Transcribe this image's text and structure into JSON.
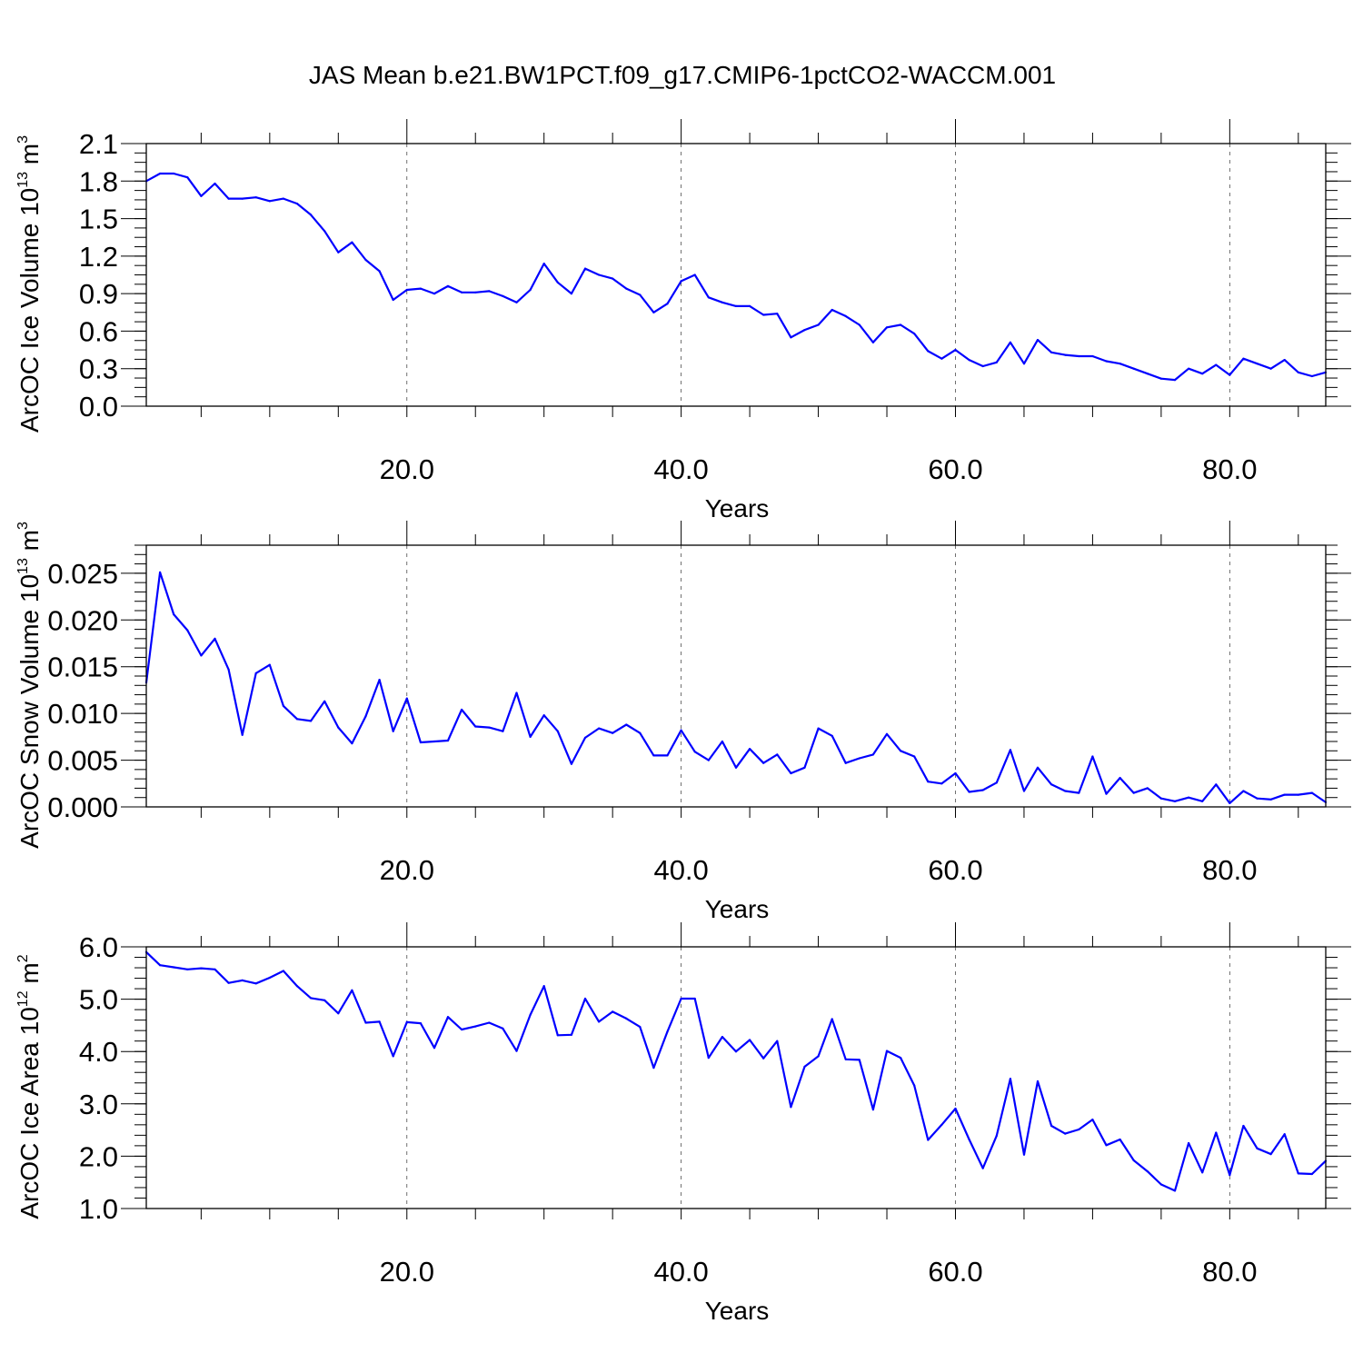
{
  "figure": {
    "title": "JAS Mean b.e21.BW1PCT.f09_g17.CMIP6-1pctCO2-WACCM.001"
  },
  "colors": {
    "series": "#0000ff",
    "axis": "#000000",
    "grid": "#000000"
  },
  "chart_data": [
    {
      "type": "line",
      "xlabel": "Years",
      "ylabel": "ArcOC Ice Volume 10",
      "ylabel_exp": "13",
      "ylabel_unit": "m",
      "ylabel_unit_exp": "3",
      "xlim": [
        1,
        87
      ],
      "ylim": [
        0.0,
        2.1
      ],
      "xticks": [
        20,
        40,
        60,
        80
      ],
      "xtick_labels": [
        "20.0",
        "40.0",
        "60.0",
        "80.0"
      ],
      "yticks": [
        0.0,
        0.3,
        0.6,
        0.9,
        1.2,
        1.5,
        1.8,
        2.1
      ],
      "ytick_labels": [
        "0.0",
        "0.3",
        "0.6",
        "0.9",
        "1.2",
        "1.5",
        "1.8",
        "2.1"
      ],
      "grid": "vertical dashed at major x ticks",
      "series": [
        {
          "x_start": 1,
          "values": [
            1.8,
            1.86,
            1.86,
            1.83,
            1.68,
            1.78,
            1.66,
            1.66,
            1.67,
            1.64,
            1.66,
            1.62,
            1.53,
            1.4,
            1.23,
            1.31,
            1.17,
            1.08,
            0.85,
            0.93,
            0.94,
            0.9,
            0.96,
            0.91,
            0.91,
            0.92,
            0.88,
            0.83,
            0.93,
            1.14,
            0.99,
            0.9,
            1.1,
            1.05,
            1.02,
            0.94,
            0.89,
            0.75,
            0.82,
            1.0,
            1.05,
            0.87,
            0.83,
            0.8,
            0.8,
            0.73,
            0.74,
            0.55,
            0.61,
            0.65,
            0.77,
            0.72,
            0.65,
            0.51,
            0.63,
            0.65,
            0.58,
            0.44,
            0.38,
            0.45,
            0.37,
            0.32,
            0.35,
            0.51,
            0.34,
            0.53,
            0.43,
            0.41,
            0.4,
            0.4,
            0.36,
            0.34,
            0.3,
            0.26,
            0.22,
            0.21,
            0.3,
            0.26,
            0.33,
            0.25,
            0.38,
            0.34,
            0.3,
            0.37,
            0.27,
            0.24,
            0.27
          ]
        }
      ]
    },
    {
      "type": "line",
      "xlabel": "Years",
      "ylabel": "ArcOC Snow Volume 10",
      "ylabel_exp": "13",
      "ylabel_unit": "m",
      "ylabel_unit_exp": "3",
      "xlim": [
        1,
        87
      ],
      "ylim": [
        0.0,
        0.028
      ],
      "xticks": [
        20,
        40,
        60,
        80
      ],
      "xtick_labels": [
        "20.0",
        "40.0",
        "60.0",
        "80.0"
      ],
      "yticks": [
        0.0,
        0.005,
        0.01,
        0.015,
        0.02,
        0.025
      ],
      "ytick_labels": [
        "0.000",
        "0.005",
        "0.010",
        "0.015",
        "0.020",
        "0.025"
      ],
      "grid": "vertical dashed at major x ticks",
      "series": [
        {
          "x_start": 1,
          "values": [
            0.0133,
            0.0251,
            0.0206,
            0.0189,
            0.0162,
            0.018,
            0.0147,
            0.0077,
            0.0143,
            0.0152,
            0.0108,
            0.0094,
            0.0092,
            0.0113,
            0.0085,
            0.0068,
            0.0097,
            0.0136,
            0.0081,
            0.0116,
            0.0069,
            0.007,
            0.0071,
            0.0104,
            0.0086,
            0.0085,
            0.0081,
            0.0122,
            0.0075,
            0.0098,
            0.0081,
            0.0046,
            0.0074,
            0.0084,
            0.0079,
            0.0088,
            0.0079,
            0.0055,
            0.0055,
            0.0082,
            0.0059,
            0.005,
            0.007,
            0.0042,
            0.0062,
            0.0047,
            0.0056,
            0.0036,
            0.0042,
            0.0084,
            0.0076,
            0.0047,
            0.0052,
            0.0056,
            0.0078,
            0.006,
            0.0054,
            0.0027,
            0.0025,
            0.0036,
            0.0016,
            0.0018,
            0.0026,
            0.0061,
            0.0017,
            0.0042,
            0.0024,
            0.0017,
            0.0015,
            0.0054,
            0.0014,
            0.0031,
            0.0015,
            0.002,
            0.0009,
            0.0006,
            0.001,
            0.0006,
            0.0024,
            0.0004,
            0.0017,
            0.0009,
            0.0008,
            0.0013,
            0.0013,
            0.0015,
            0.0005
          ]
        }
      ]
    },
    {
      "type": "line",
      "xlabel": "Years",
      "ylabel": "ArcOC Ice Area 10",
      "ylabel_exp": "12",
      "ylabel_unit": "m",
      "ylabel_unit_exp": "2",
      "xlim": [
        1,
        87
      ],
      "ylim": [
        1.0,
        6.0
      ],
      "xticks": [
        20,
        40,
        60,
        80
      ],
      "xtick_labels": [
        "20.0",
        "40.0",
        "60.0",
        "80.0"
      ],
      "yticks": [
        1.0,
        2.0,
        3.0,
        4.0,
        5.0,
        6.0
      ],
      "ytick_labels": [
        "1.0",
        "2.0",
        "3.0",
        "4.0",
        "5.0",
        "6.0"
      ],
      "grid": "vertical dashed at major x ticks",
      "series": [
        {
          "x_start": 1,
          "values": [
            5.9,
            5.65,
            5.61,
            5.57,
            5.59,
            5.57,
            5.31,
            5.36,
            5.3,
            5.41,
            5.54,
            5.25,
            5.02,
            4.98,
            4.73,
            5.17,
            4.55,
            4.57,
            3.91,
            4.56,
            4.54,
            4.07,
            4.66,
            4.42,
            4.48,
            4.55,
            4.44,
            4.01,
            4.7,
            5.25,
            4.31,
            4.32,
            5.01,
            4.57,
            4.76,
            4.63,
            4.47,
            3.69,
            4.38,
            5.01,
            5.01,
            3.88,
            4.28,
            4.0,
            4.22,
            3.87,
            4.2,
            2.94,
            3.71,
            3.91,
            4.62,
            3.85,
            3.84,
            2.89,
            4.01,
            3.88,
            3.35,
            2.31,
            2.6,
            2.91,
            2.32,
            1.77,
            2.39,
            3.48,
            2.03,
            3.43,
            2.58,
            2.43,
            2.51,
            2.7,
            2.21,
            2.32,
            1.92,
            1.71,
            1.46,
            1.34,
            2.25,
            1.69,
            2.45,
            1.64,
            2.58,
            2.15,
            2.04,
            2.42,
            1.67,
            1.66,
            1.91
          ]
        }
      ]
    }
  ]
}
